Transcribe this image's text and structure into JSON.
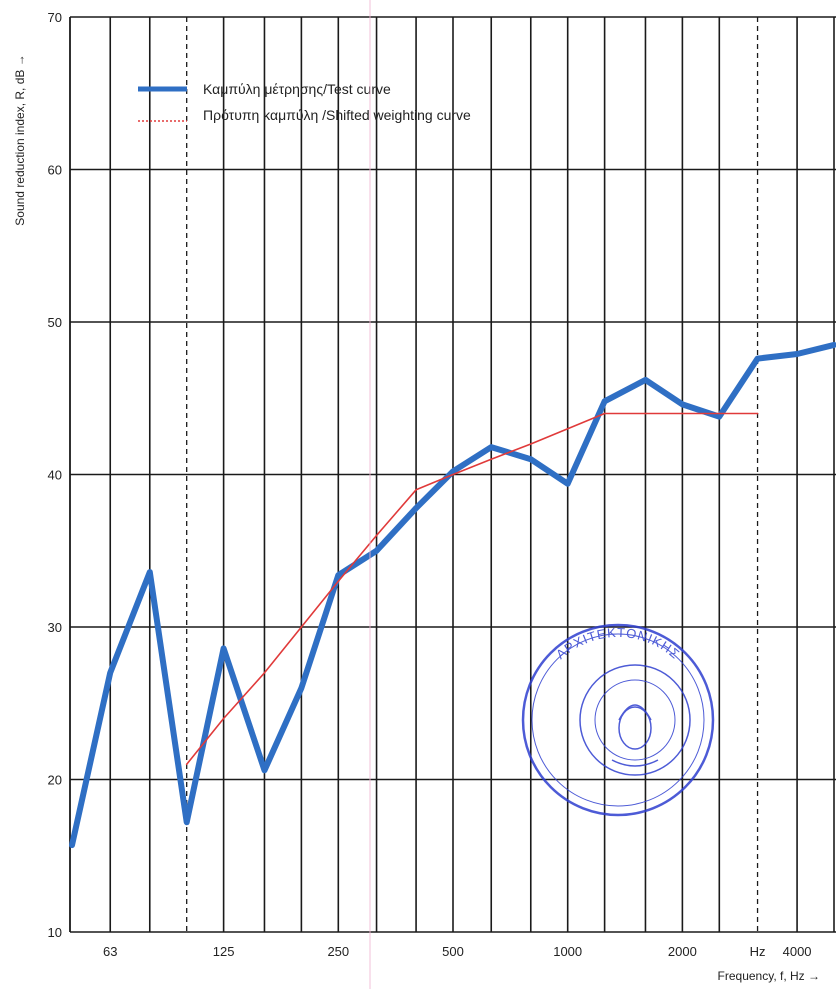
{
  "chart_data": {
    "type": "line",
    "ylabel": "Sound reduction index, R, dB →",
    "xlabel": "Frequency, f, Hz →",
    "ylim": [
      10,
      70
    ],
    "yticks": [
      "10",
      "20",
      "30",
      "40",
      "50",
      "60",
      "70"
    ],
    "xticks": [
      {
        "label": "63",
        "freq": 63
      },
      {
        "label": "125",
        "freq": 125
      },
      {
        "label": "250",
        "freq": 250
      },
      {
        "label": "500",
        "freq": 500
      },
      {
        "label": "1000",
        "freq": 1000
      },
      {
        "label": "2000",
        "freq": 2000
      },
      {
        "label": "Hz",
        "freq": 3150
      },
      {
        "label": "4000",
        "freq": 4000
      }
    ],
    "x_scale": "log",
    "grid": true,
    "legend_position": "top-left",
    "series": [
      {
        "name": "Καμπύλη μέτρησης/Test curve",
        "color": "#2f6fc4",
        "style": "solid-thick",
        "x": [
          50,
          63,
          80,
          100,
          125,
          160,
          200,
          250,
          315,
          400,
          500,
          630,
          800,
          1000,
          1250,
          1600,
          2000,
          2500,
          3150,
          4000,
          5000
        ],
        "y": [
          15.7,
          27.0,
          33.6,
          17.2,
          28.6,
          20.6,
          26.0,
          33.4,
          35.0,
          37.8,
          40.2,
          41.8,
          41.0,
          39.4,
          44.8,
          46.2,
          44.6,
          43.8,
          47.6,
          47.9,
          48.5
        ]
      },
      {
        "name": "Πρότυπη καμπύλη /Shifted weighting curve",
        "color": "#e03a3a",
        "style": "thin",
        "x": [
          100,
          125,
          160,
          200,
          250,
          315,
          400,
          500,
          630,
          800,
          1000,
          1250,
          1600,
          2000,
          2500,
          3150
        ],
        "y": [
          21.0,
          24.0,
          27.0,
          30.0,
          33.0,
          36.0,
          39.0,
          40.0,
          41.0,
          42.0,
          43.0,
          44.0,
          44.0,
          44.0,
          44.0,
          44.0
        ]
      }
    ]
  },
  "stamp": {
    "label": "ΑΡΧΙΤΕΚΤΟΝΙΚΗΣ",
    "description_seal": true
  },
  "colors": {
    "grid": "#1a1a1a",
    "stamp": "#2f3fd0"
  }
}
